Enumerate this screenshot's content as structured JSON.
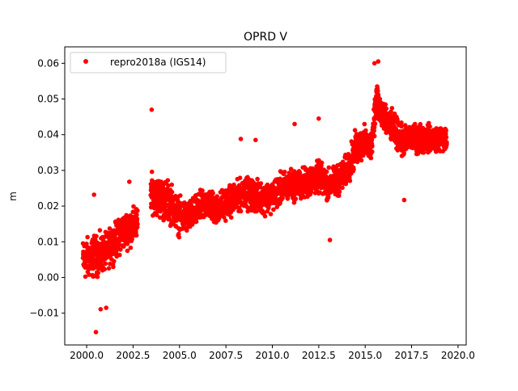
{
  "chart_data": {
    "type": "scatter",
    "title": "OPRD V",
    "xlabel": "",
    "ylabel": "m",
    "xlim": [
      1998.82,
      2020.44
    ],
    "ylim": [
      -0.0189,
      0.0646
    ],
    "xticks": [
      2000.0,
      2002.5,
      2005.0,
      2007.5,
      2010.0,
      2012.5,
      2015.0,
      2017.5,
      2020.0
    ],
    "xtick_labels": [
      "2000.0",
      "2002.5",
      "2005.0",
      "2007.5",
      "2010.0",
      "2012.5",
      "2015.0",
      "2017.5",
      "2020.0"
    ],
    "yticks": [
      -0.01,
      0.0,
      0.01,
      0.02,
      0.03,
      0.04,
      0.05,
      0.06
    ],
    "ytick_labels": [
      "−0.01",
      "0.00",
      "0.01",
      "0.02",
      "0.03",
      "0.04",
      "0.05",
      "0.06"
    ],
    "grid": false,
    "legend": {
      "position": "top-left",
      "entries": [
        "repro2018a (IGS14)"
      ]
    },
    "series": [
      {
        "name": "repro2018a (IGS14)",
        "color": "#ff0000",
        "marker": "circle",
        "data_gap": [
          2002.8,
          2003.45
        ],
        "envelope_note_columns": [
          "year",
          "center_m",
          "half_spread_m"
        ],
        "envelope": [
          [
            1999.8,
            0.005,
            0.008
          ],
          [
            2000.5,
            0.006,
            0.008
          ],
          [
            2001.0,
            0.007,
            0.007
          ],
          [
            2001.5,
            0.01,
            0.007
          ],
          [
            2002.0,
            0.013,
            0.007
          ],
          [
            2002.75,
            0.015,
            0.007
          ],
          [
            2003.45,
            0.024,
            0.007
          ],
          [
            2004.0,
            0.022,
            0.008
          ],
          [
            2004.5,
            0.021,
            0.008
          ],
          [
            2005.0,
            0.017,
            0.007
          ],
          [
            2005.5,
            0.017,
            0.006
          ],
          [
            2006.0,
            0.019,
            0.006
          ],
          [
            2006.5,
            0.021,
            0.006
          ],
          [
            2007.0,
            0.019,
            0.006
          ],
          [
            2007.5,
            0.021,
            0.006
          ],
          [
            2008.0,
            0.022,
            0.006
          ],
          [
            2008.5,
            0.024,
            0.006
          ],
          [
            2009.0,
            0.023,
            0.006
          ],
          [
            2009.5,
            0.022,
            0.006
          ],
          [
            2010.0,
            0.023,
            0.006
          ],
          [
            2010.5,
            0.025,
            0.006
          ],
          [
            2011.0,
            0.026,
            0.006
          ],
          [
            2011.5,
            0.026,
            0.006
          ],
          [
            2012.0,
            0.027,
            0.006
          ],
          [
            2012.5,
            0.028,
            0.006
          ],
          [
            2013.0,
            0.026,
            0.006
          ],
          [
            2013.5,
            0.027,
            0.006
          ],
          [
            2014.0,
            0.03,
            0.006
          ],
          [
            2014.5,
            0.036,
            0.007
          ],
          [
            2015.0,
            0.038,
            0.006
          ],
          [
            2015.3,
            0.036,
            0.005
          ],
          [
            2015.6,
            0.05,
            0.008
          ],
          [
            2016.0,
            0.044,
            0.006
          ],
          [
            2016.5,
            0.042,
            0.006
          ],
          [
            2017.0,
            0.038,
            0.006
          ],
          [
            2017.5,
            0.039,
            0.005
          ],
          [
            2018.0,
            0.039,
            0.006
          ],
          [
            2018.5,
            0.039,
            0.005
          ],
          [
            2019.0,
            0.039,
            0.005
          ],
          [
            2019.4,
            0.038,
            0.005
          ]
        ],
        "outliers": [
          [
            2000.5,
            -0.0153
          ],
          [
            2003.5,
            0.047
          ],
          [
            2013.1,
            0.0105
          ],
          [
            2000.4,
            0.0232
          ],
          [
            2017.1,
            0.0217
          ],
          [
            2001.05,
            -0.0085
          ],
          [
            2015.7,
            0.0605
          ],
          [
            2015.5,
            0.06
          ],
          [
            2008.3,
            0.0388
          ],
          [
            2012.5,
            0.0445
          ],
          [
            2011.2,
            0.043
          ],
          [
            2009.1,
            0.0385
          ],
          [
            2000.75,
            -0.0089
          ],
          [
            2002.3,
            0.0268
          ]
        ]
      }
    ]
  }
}
